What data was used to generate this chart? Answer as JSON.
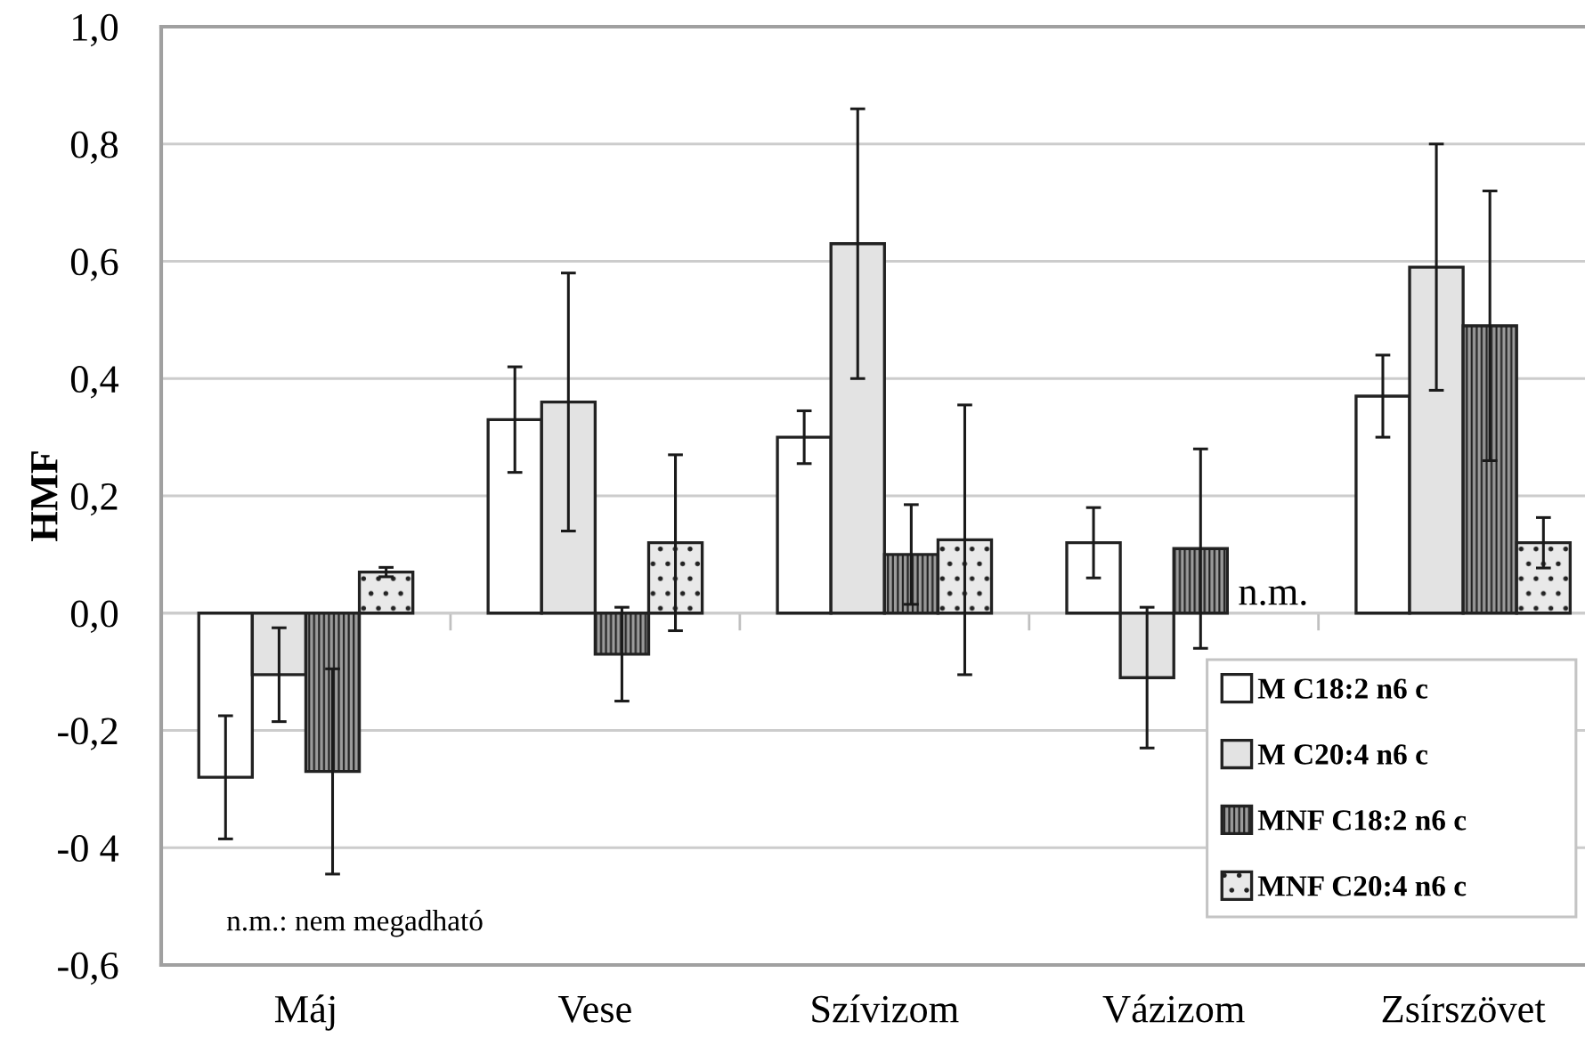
{
  "chart_data": {
    "type": "bar",
    "ylabel": "HMF",
    "categories": [
      "Máj",
      "Vese",
      "Szívizom",
      "Vázizom",
      "Zsírszövet"
    ],
    "series": [
      {
        "name": "M C18:2 n6 c",
        "color": "#ffffff",
        "values": [
          -0.28,
          0.33,
          0.3,
          0.12,
          0.37
        ],
        "errors": [
          0.105,
          0.09,
          0.045,
          0.06,
          0.07
        ]
      },
      {
        "name": "M C20:4 n6 c",
        "color": "#e3e3e3",
        "values": [
          -0.105,
          0.36,
          0.63,
          -0.11,
          0.59
        ],
        "errors": [
          0.08,
          0.22,
          0.23,
          0.12,
          0.21
        ]
      },
      {
        "name": "MNF C18:2 n6 c",
        "color": "#222222",
        "values": [
          -0.27,
          -0.07,
          0.1,
          0.11,
          0.49
        ],
        "errors": [
          0.175,
          0.08,
          0.085,
          0.17,
          0.23
        ]
      },
      {
        "name": "MNF C20:4 n6 c",
        "color": "#222222",
        "values": [
          0.07,
          0.12,
          0.125,
          null,
          0.12
        ],
        "errors": [
          0.008,
          0.15,
          0.23,
          null,
          0.043
        ]
      }
    ],
    "ylim": [
      -0.6,
      1.0
    ],
    "yticks": [
      {
        "value": -0.6,
        "label": "-0,6"
      },
      {
        "value": -0.4,
        "label": "-0 4"
      },
      {
        "value": -0.2,
        "label": "-0,2"
      },
      {
        "value": 0.0,
        "label": "0,0"
      },
      {
        "value": 0.2,
        "label": "0,2"
      },
      {
        "value": 0.4,
        "label": "0,4"
      },
      {
        "value": 0.6,
        "label": "0,6"
      },
      {
        "value": 0.8,
        "label": "0,8"
      },
      {
        "value": 1.0,
        "label": "1,0"
      }
    ],
    "grid": "y",
    "legend": "bottom right",
    "annotations": [
      {
        "text": "n.m.",
        "x": "Vázizom",
        "y": 0.0
      },
      "n.m.: nem megadható"
    ]
  }
}
